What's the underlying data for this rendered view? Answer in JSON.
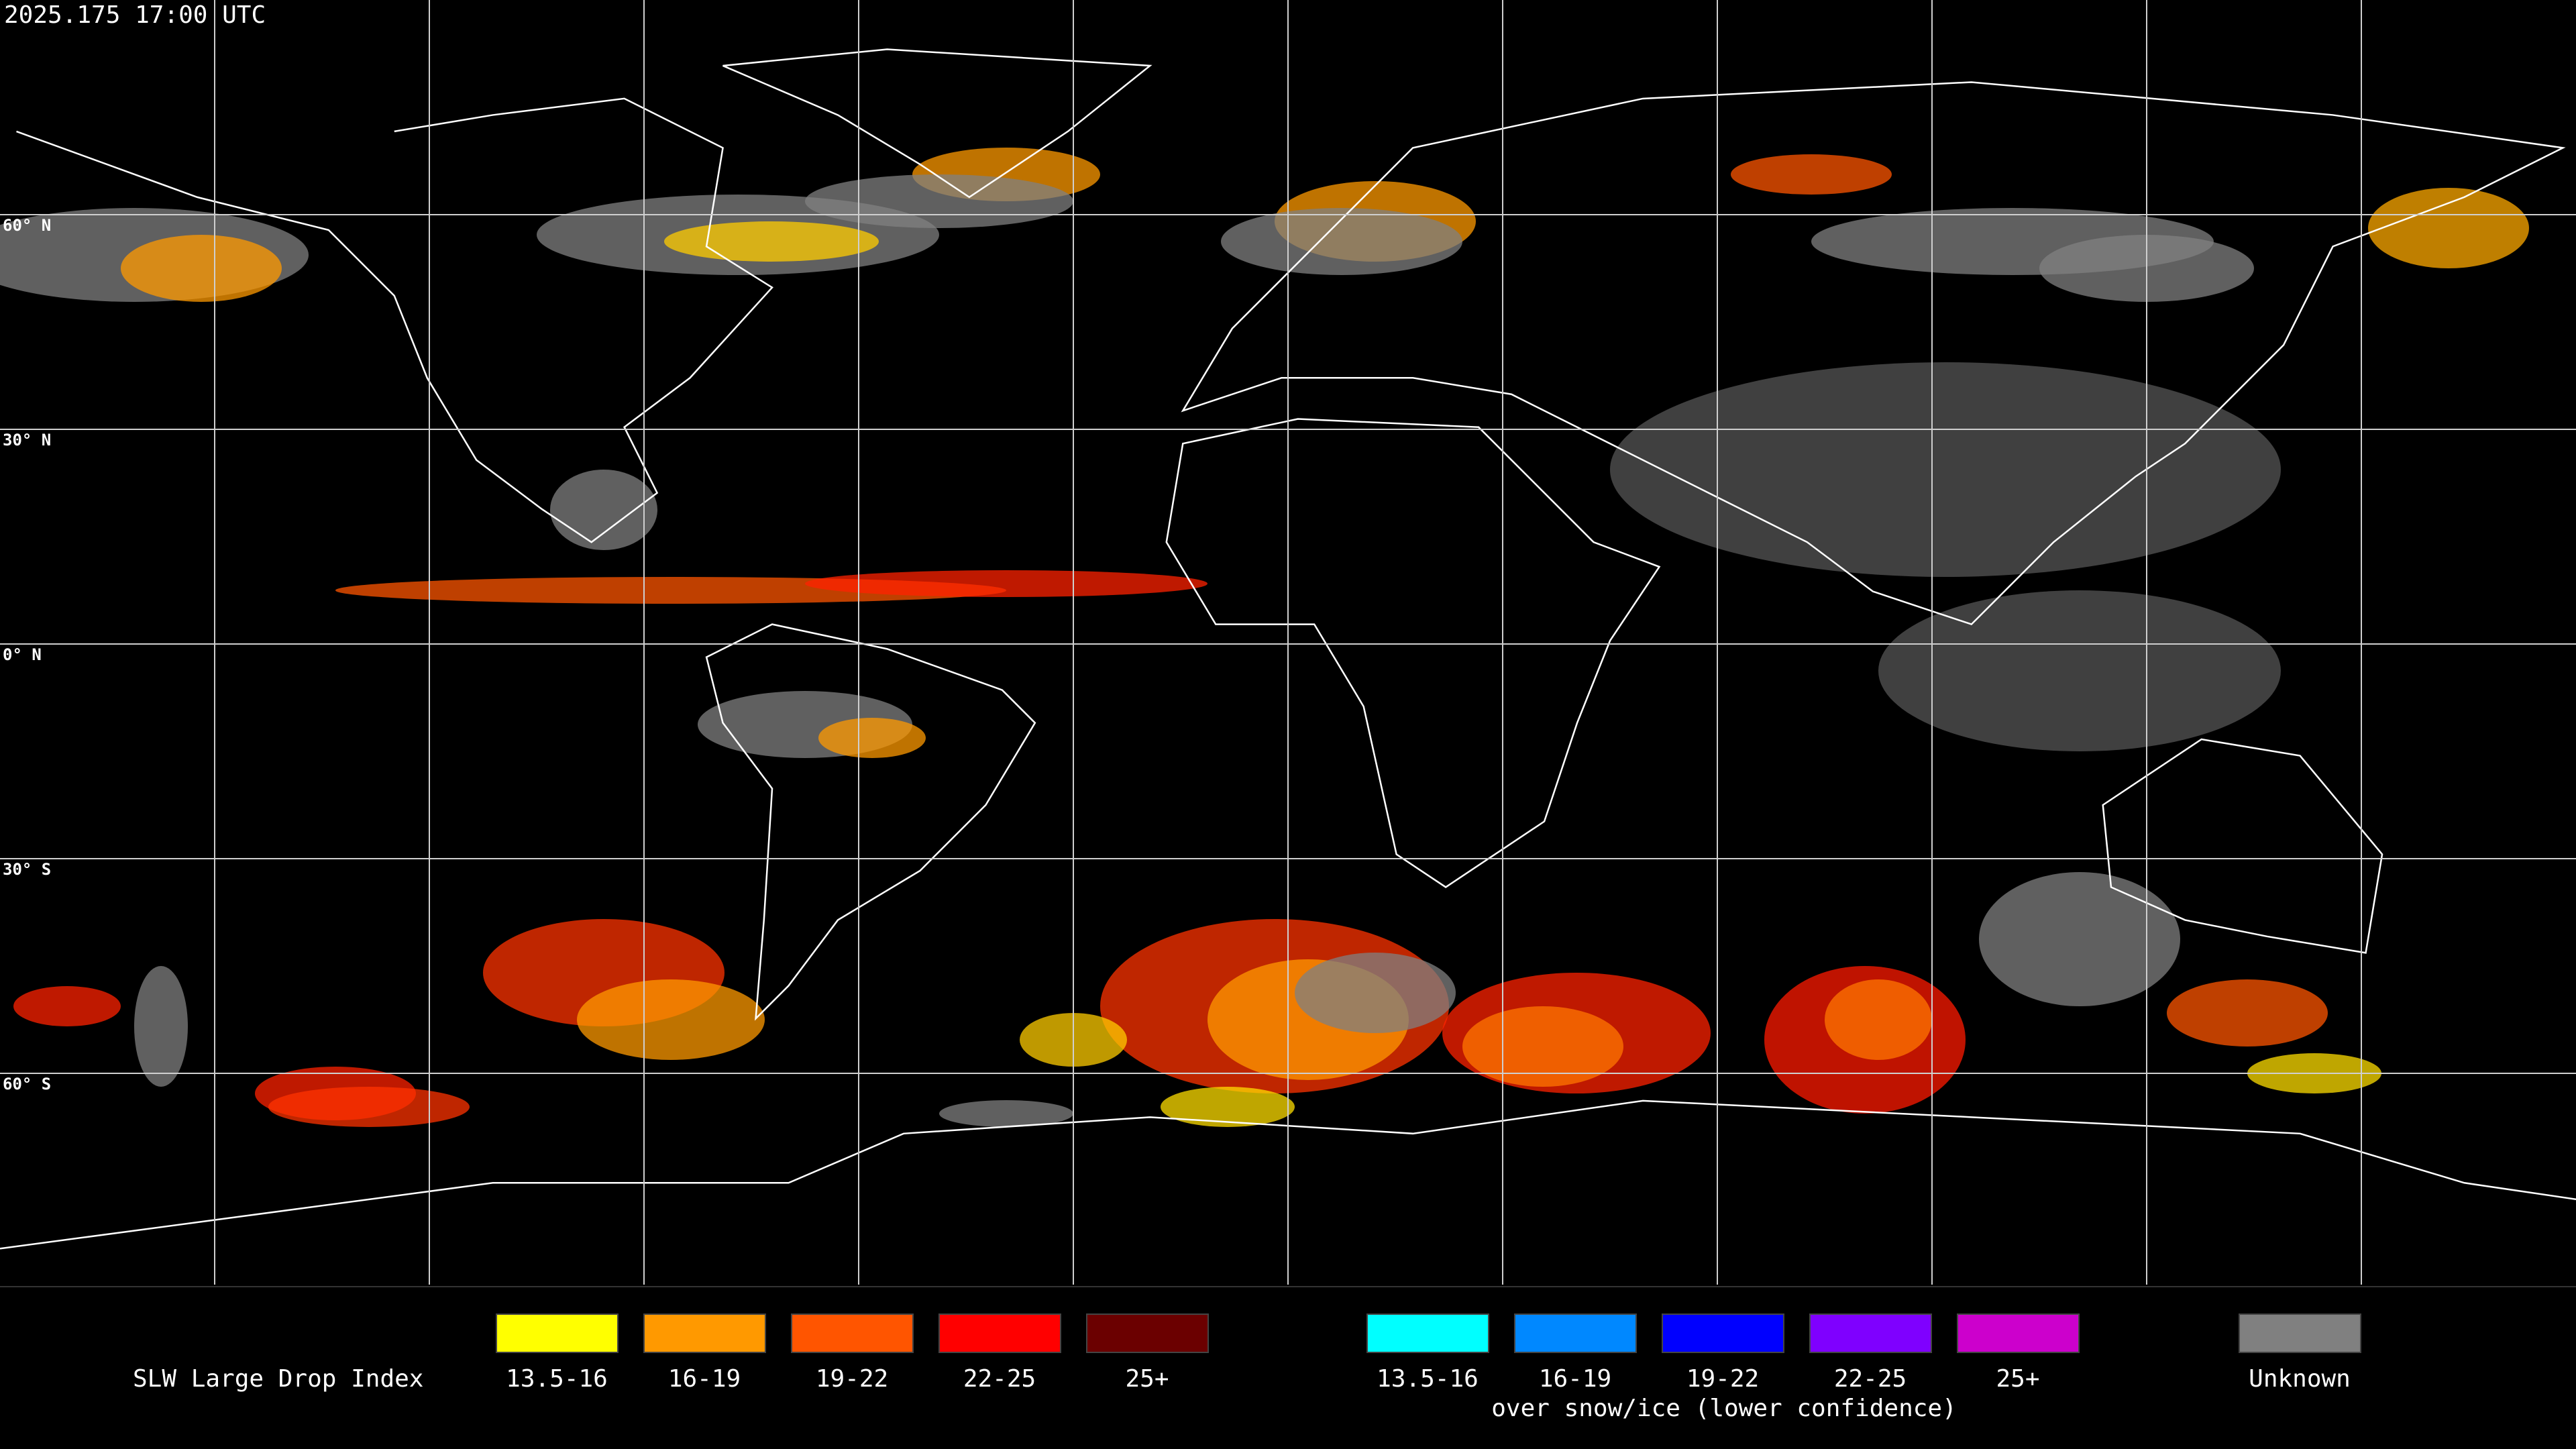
{
  "timestamp": "2025.175 17:00 UTC",
  "latitude_labels": [
    "60° N",
    "30° N",
    "0° N",
    "30° S",
    "60° S"
  ],
  "legend": {
    "title": "SLW Large Drop Index",
    "liquid": [
      {
        "label": "13.5-16",
        "color": "#ffff00"
      },
      {
        "label": "16-19",
        "color": "#ff9900"
      },
      {
        "label": "19-22",
        "color": "#ff5500"
      },
      {
        "label": "22-25",
        "color": "#ff0000"
      },
      {
        "label": "25+",
        "color": "#6b0000"
      }
    ],
    "snow_ice": [
      {
        "label": "13.5-16",
        "color": "#00ffff"
      },
      {
        "label": "16-19",
        "color": "#0088ff"
      },
      {
        "label": "19-22",
        "color": "#0000ff"
      },
      {
        "label": "22-25",
        "color": "#7f00ff"
      },
      {
        "label": "25+",
        "color": "#cc00cc"
      }
    ],
    "snow_ice_caption": "over snow/ice (lower confidence)",
    "unknown": {
      "label": "Unknown",
      "color": "#808080"
    }
  }
}
